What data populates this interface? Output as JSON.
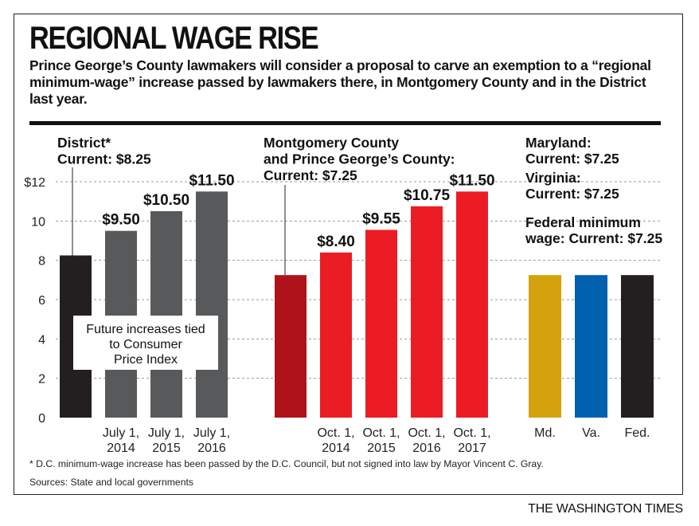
{
  "title": "REGIONAL WAGE RISE",
  "subtitle": "Prince George’s County lawmakers will consider a proposal to carve an exemption to a “regional minimum-wage” increase passed by lawmakers there, in Montgomery County and in the District last year.",
  "footnote": "* D.C. minimum-wage increase has been passed by the D.C. Council, but not signed into law by Mayor Vincent C. Gray.",
  "sources": "Sources: State and local governments",
  "credit": "THE WASHINGTON TIMES",
  "chart_data": {
    "type": "bar",
    "ylim": [
      0,
      12
    ],
    "y_ticks": [
      "0",
      "2",
      "4",
      "6",
      "8",
      "10",
      "$12"
    ],
    "y_tick_values": [
      0,
      2,
      4,
      6,
      8,
      10,
      12
    ],
    "grid": "dashed horizontal",
    "groups": [
      {
        "header": [
          "District*",
          "Current: $8.25"
        ],
        "note": [
          "Future increases tied",
          "to Consumer",
          "Price Index"
        ],
        "bars": [
          {
            "category": [
              "",
              ""
            ],
            "value": 8.25,
            "label": "",
            "color": "#231f20"
          },
          {
            "category": [
              "July 1,",
              "2014"
            ],
            "value": 9.5,
            "label": "$9.50",
            "color": "#58595b"
          },
          {
            "category": [
              "July 1,",
              "2015"
            ],
            "value": 10.5,
            "label": "$10.50",
            "color": "#58595b"
          },
          {
            "category": [
              "July 1,",
              "2016"
            ],
            "value": 11.5,
            "label": "$11.50",
            "color": "#58595b"
          }
        ]
      },
      {
        "header": [
          "Montgomery County",
          "and Prince George’s County:",
          "Current: $7.25"
        ],
        "bars": [
          {
            "category": [
              "",
              ""
            ],
            "value": 7.25,
            "label": "",
            "color": "#b01219"
          },
          {
            "category": [
              "Oct. 1,",
              "2014"
            ],
            "value": 8.4,
            "label": "$8.40",
            "color": "#ec1c24"
          },
          {
            "category": [
              "Oct. 1,",
              "2015"
            ],
            "value": 9.55,
            "label": "$9.55",
            "color": "#ec1c24"
          },
          {
            "category": [
              "Oct. 1,",
              "2016"
            ],
            "value": 10.75,
            "label": "$10.75",
            "color": "#ec1c24"
          },
          {
            "category": [
              "Oct. 1,",
              "2017"
            ],
            "value": 11.5,
            "label": "$11.50",
            "color": "#ec1c24"
          }
        ]
      },
      {
        "header": [
          "Maryland:",
          "Current: $7.25",
          "Virginia:",
          "Current: $7.25",
          "Federal minimum",
          "wage: Current: $7.25"
        ],
        "bars": [
          {
            "category": [
              "Md.",
              ""
            ],
            "value": 7.25,
            "label": "",
            "color": "#d4a20c"
          },
          {
            "category": [
              "Va.",
              ""
            ],
            "value": 7.25,
            "label": "",
            "color": "#0061ae"
          },
          {
            "category": [
              "Fed.",
              ""
            ],
            "value": 7.25,
            "label": "",
            "color": "#231f20"
          }
        ]
      }
    ]
  }
}
